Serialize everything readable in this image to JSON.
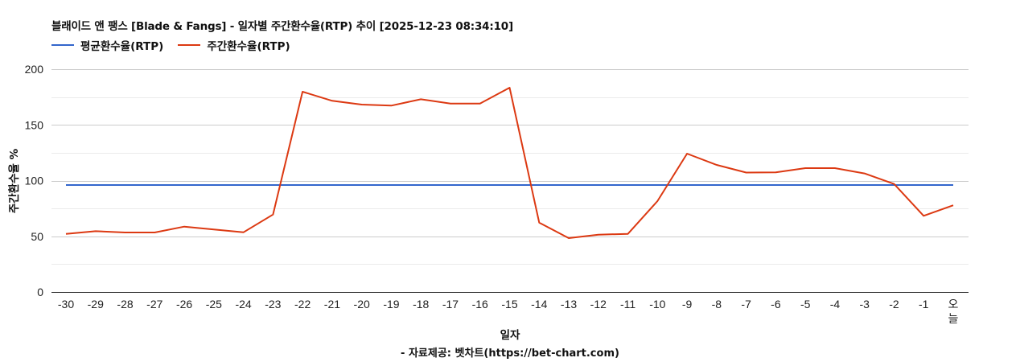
{
  "header": {
    "title": "블래이드 앤 팽스 [Blade & Fangs] - 일자별 주간환수율(RTP) 추이 [2025-12-23 08:34:10]"
  },
  "legend": [
    {
      "label": "평균환수율(RTP)",
      "color": "#3366cc"
    },
    {
      "label": "주간환수율(RTP)",
      "color": "#dc3912"
    }
  ],
  "axes": {
    "xlabel": "일자",
    "ylabel": "주간환수율 %"
  },
  "footer": {
    "credit": "- 자료제공: 벳차트(https://bet-chart.com)"
  },
  "chart_data": {
    "type": "line",
    "title": "블래이드 앤 팽스 [Blade & Fangs] - 일자별 주간환수율(RTP) 추이 [2025-12-23 08:34:10]",
    "xlabel": "일자",
    "ylabel": "주간환수율 %",
    "ylim": [
      0,
      200
    ],
    "yticks": [
      0,
      50,
      100,
      150,
      200
    ],
    "grid": true,
    "legend_position": "top",
    "categories": [
      "-30",
      "-29",
      "-28",
      "-27",
      "-26",
      "-25",
      "-24",
      "-23",
      "-22",
      "-21",
      "-20",
      "-19",
      "-18",
      "-17",
      "-16",
      "-15",
      "-14",
      "-13",
      "-12",
      "-11",
      "-10",
      "-9",
      "-8",
      "-7",
      "-6",
      "-5",
      "-4",
      "-3",
      "-2",
      "-1",
      "오늘"
    ],
    "series": [
      {
        "name": "평균환수율(RTP)",
        "color": "#3366cc",
        "values": [
          96,
          96,
          96,
          96,
          96,
          96,
          96,
          96,
          96,
          96,
          96,
          96,
          96,
          96,
          96,
          96,
          96,
          96,
          96,
          96,
          96,
          96,
          96,
          96,
          96,
          96,
          96,
          96,
          96,
          96,
          96
        ]
      },
      {
        "name": "주간환수율(RTP)",
        "color": "#dc3912",
        "values": [
          52.2,
          54.6,
          53.4,
          53.4,
          58.7,
          56.1,
          53.6,
          69.5,
          179.8,
          171.6,
          168.2,
          167.3,
          173.0,
          169.2,
          169.2,
          183.4,
          62.3,
          48.4,
          51.5,
          52.2,
          81.6,
          124.2,
          114.1,
          107.2,
          107.4,
          111.2,
          111.2,
          106.4,
          97.0,
          68.4,
          77.8
        ]
      }
    ]
  }
}
